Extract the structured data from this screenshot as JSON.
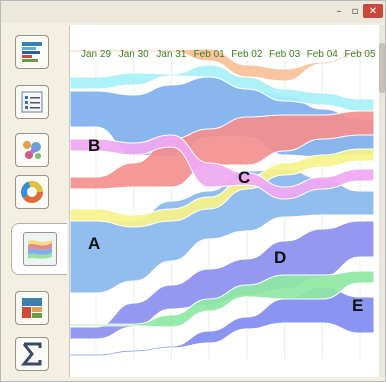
{
  "window": {
    "controls": {
      "minimize": "–",
      "maximize": "▫",
      "close": "✕"
    }
  },
  "sidebar": {
    "tools": [
      {
        "icon": "stacked-bars-icon"
      },
      {
        "icon": "list-icon"
      },
      {
        "icon": "scatter-icon"
      },
      {
        "icon": "donut-icon"
      },
      {
        "icon": "streamgraph-icon",
        "active": true
      },
      {
        "icon": "treemap-icon"
      },
      {
        "icon": "sigma-icon"
      }
    ]
  },
  "chart_data": {
    "type": "area",
    "subtype": "streamgraph",
    "x": [
      "Jan 29",
      "Jan 30",
      "Jan 31",
      "Feb 01",
      "Feb 02",
      "Feb 03",
      "Feb 04",
      "Feb 05"
    ],
    "title": "",
    "xlabel": "",
    "ylabel": "",
    "grid": "vertical",
    "legend": "none",
    "tick_color": "#3f7f1f",
    "annotations": [
      "A",
      "B",
      "C",
      "D",
      "E"
    ],
    "series": [
      {
        "name": "B",
        "color": "#7fb0ea",
        "values": [
          3,
          5,
          6,
          5,
          4,
          5,
          4,
          3
        ]
      },
      {
        "name": "C",
        "color": "#f48f8f",
        "values": [
          1,
          2,
          4,
          3,
          4,
          3,
          2,
          2
        ]
      },
      {
        "name": "A",
        "color": "#88b8ee",
        "values": [
          6,
          5,
          5,
          4,
          5,
          4,
          3,
          2
        ]
      },
      {
        "name": "D",
        "color": "#8b8ff0",
        "values": [
          1,
          2,
          2,
          3,
          3,
          4,
          4,
          3
        ]
      },
      {
        "name": "E",
        "color": "#7f8cf0",
        "values": [
          0,
          0,
          0,
          1,
          1,
          2,
          3,
          3
        ]
      },
      {
        "color": "#f7f38a",
        "values": [
          1,
          1,
          1,
          1,
          1,
          1,
          1,
          1
        ]
      },
      {
        "color": "#8ee8a3",
        "values": [
          0,
          0,
          1,
          1,
          1,
          2,
          2,
          1
        ]
      },
      {
        "color": "#f0a8f2",
        "values": [
          1,
          1,
          1,
          2,
          1,
          1,
          1,
          1
        ]
      },
      {
        "color": "#a8f0f8",
        "values": [
          1,
          1,
          0,
          1,
          1,
          1,
          1,
          1
        ]
      },
      {
        "color": "#f8c098",
        "values": [
          0,
          0,
          0,
          1,
          1,
          1,
          0,
          0
        ]
      }
    ]
  }
}
